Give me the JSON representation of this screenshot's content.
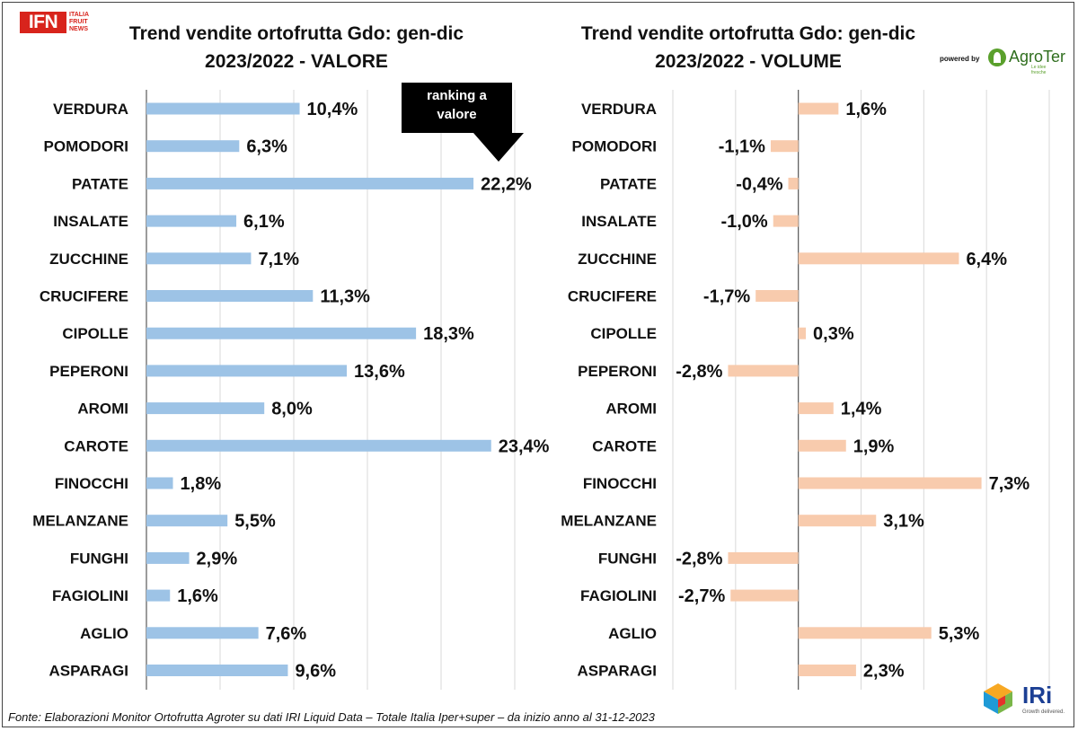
{
  "logos": {
    "ifn_text": "IFN",
    "ifn_sub": [
      "ITALIA",
      "FRUIT",
      "NEWS"
    ],
    "powered_by": "powered by",
    "agroter": "AgroTer",
    "agroter_tagline": "Le idee fresche",
    "iri": "IRi",
    "iri_tagline": "Growth delivered."
  },
  "annotation": {
    "line1": "ranking a",
    "line2": "valore"
  },
  "footer": "Fonte: Elaborazioni Monitor Ortofrutta Agroter su dati IRI Liquid Data – Totale Italia Iper+super –  da inizio anno al 31-12-2023",
  "chart_data": [
    {
      "type": "bar",
      "orientation": "horizontal",
      "title_line1": "Trend vendite ortofrutta Gdo: gen-dic",
      "title_line2": "2023/2022 - VALORE",
      "categories": [
        "VERDURA",
        "POMODORI",
        "PATATE",
        "INSALATE",
        "ZUCCHINE",
        "CRUCIFERE",
        "CIPOLLE",
        "PEPERONI",
        "AROMI",
        "CAROTE",
        "FINOCCHI",
        "MELANZANE",
        "FUNGHI",
        "FAGIOLINI",
        "AGLIO",
        "ASPARAGI"
      ],
      "values": [
        10.4,
        6.3,
        22.2,
        6.1,
        7.1,
        11.3,
        18.3,
        13.6,
        8.0,
        23.4,
        1.8,
        5.5,
        2.9,
        1.6,
        7.6,
        9.6
      ],
      "labels": [
        "10,4%",
        "6,3%",
        "22,2%",
        "6,1%",
        "7,1%",
        "11,3%",
        "18,3%",
        "13,6%",
        "8,0%",
        "23,4%",
        "1,8%",
        "5,5%",
        "2,9%",
        "1,6%",
        "7,6%",
        "9,6%"
      ],
      "xlim": [
        0,
        25
      ],
      "grid": true,
      "color": "#9dc3e6"
    },
    {
      "type": "bar",
      "orientation": "horizontal",
      "title_line1": "Trend vendite ortofrutta Gdo: gen-dic",
      "title_line2": "2023/2022 - VOLUME",
      "categories": [
        "VERDURA",
        "POMODORI",
        "PATATE",
        "INSALATE",
        "ZUCCHINE",
        "CRUCIFERE",
        "CIPOLLE",
        "PEPERONI",
        "AROMI",
        "CAROTE",
        "FINOCCHI",
        "MELANZANE",
        "FUNGHI",
        "FAGIOLINI",
        "AGLIO",
        "ASPARAGI"
      ],
      "values": [
        1.6,
        -1.1,
        -0.4,
        -1.0,
        6.4,
        -1.7,
        0.3,
        -2.8,
        1.4,
        1.9,
        7.3,
        3.1,
        -2.8,
        -2.7,
        5.3,
        2.3
      ],
      "labels": [
        "1,6%",
        "-1,1%",
        "-0,4%",
        "-1,0%",
        "6,4%",
        "-1,7%",
        "0,3%",
        "-2,8%",
        "1,4%",
        "1,9%",
        "7,3%",
        "3,1%",
        "-2,8%",
        "-2,7%",
        "5,3%",
        "2,3%"
      ],
      "xlim": [
        -5,
        10
      ],
      "grid": true,
      "color": "#f8cbad"
    }
  ]
}
